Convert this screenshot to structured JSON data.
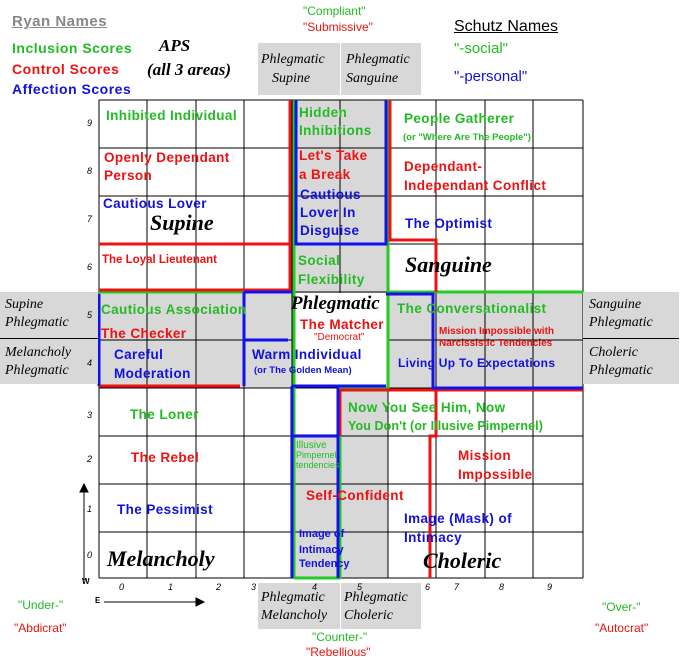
{
  "legend": {
    "ryan_names": "Ryan  Names",
    "inclusion": "Inclusion Scores",
    "control": "Control Scores",
    "affection": "Affection Scores",
    "aps_line1": "APS",
    "aps_line2": "(all 3 areas)",
    "schutz_names": "Schutz Names",
    "social": "\"-social\"",
    "personal": "\"-personal\""
  },
  "top_labels": {
    "compliant": "\"Compliant\"",
    "submissive": "\"Submissive\""
  },
  "bottom_labels": {
    "counter": "\"Counter-\"",
    "rebellious": "\"Rebellious\""
  },
  "left_labels": {
    "under": "\"Under-\"",
    "abdicrat": "\"Abdicrat\""
  },
  "right_labels": {
    "over": "\"Over-\"",
    "autocrat": "\"Autocrat\""
  },
  "side_boxes": {
    "top_left": "Phlegmatic\nSupine",
    "top_right": "Phlegmatic\nSanguine",
    "bottom_left": "Phlegmatic\nMelancholy",
    "bottom_right": "Phlegmatic\nCholeric",
    "left_top": "Supine\nPhlegmatic",
    "left_bottom": "Melancholy\nPhlegmatic",
    "right_top": "Sanguine\nPhlegmatic",
    "right_bottom": "Choleric\nPhlegmatic"
  },
  "temperaments": {
    "supine": "Supine",
    "sanguine": "Sanguine",
    "phlegmatic": "Phlegmatic",
    "melancholy": "Melancholy",
    "choleric": "Choleric"
  },
  "cells": {
    "inhibited_individual": "Inhibited Individual",
    "hidden_inhibitions_1": "Hidden",
    "hidden_inhibitions_2": "Inhibitions",
    "people_gatherer": "People Gatherer",
    "where_are_the_people": "(or \"Where Are The People\")",
    "openly_dependant_1": "Openly Dependant",
    "openly_dependant_2": "Person",
    "lets_take_break_1": "Let's Take",
    "lets_take_break_2": "a Break",
    "dependant_independant_1": "Dependant-",
    "dependant_independant_2": "Independant Conflict",
    "cautious_lover": "Cautious Lover",
    "cautious_lover_disguise_1": "Cautious",
    "cautious_lover_disguise_2": "Lover In",
    "cautious_lover_disguise_3": "Disguise",
    "the_optimist": "The Optimist",
    "loyal_lieutenant": "The Loyal Lieutenant",
    "social_flexibility_1": "Social",
    "social_flexibility_2": "Flexibility",
    "cautious_association": "Cautious Association",
    "the_matcher": "The Matcher",
    "democrat": "\"Democrat\"",
    "the_conversationalist": "The Conversationalist",
    "the_checker": "The Checker",
    "mission_impossible_narc_1": "Mission Impossible with",
    "mission_impossible_narc_2": "Narcissistic Tendencies",
    "careful_moderation_1": "Careful",
    "careful_moderation_2": "Moderation",
    "warm_individual": "Warm Individual",
    "golden_mean": "(or The Golden Mean)",
    "living_up": "Living Up To Expectations",
    "the_loner": "The Loner",
    "now_you_see_1": "Now You See Him, Now",
    "now_you_see_2": "You Don't (or Illusive Pimpernel)",
    "the_rebel": "The Rebel",
    "illusive_1": "Illusive",
    "illusive_2": "Pimpernel",
    "illusive_3": "tendencies",
    "mission_impossible_1": "Mission",
    "mission_impossible_2": "Impossible",
    "self_confident": "Self-Confident",
    "the_pessimist": "The Pessimist",
    "image_mask_1": "Image (Mask) of",
    "image_mask_2": "Intimacy",
    "image_intimacy_1": "Image of",
    "image_intimacy_2": "Intimacy",
    "image_intimacy_3": "Tendency"
  },
  "axis": {
    "y_ticks": [
      "9",
      "8",
      "7",
      "6",
      "5",
      "4",
      "3",
      "2",
      "1",
      "0"
    ],
    "x_ticks": [
      "0",
      "1",
      "2",
      "3",
      "4",
      "5",
      "6",
      "7",
      "8",
      "9"
    ],
    "w_label": "W",
    "e_label": "E"
  },
  "colors": {
    "inclusion": "#22bb22",
    "control": "#ee1111",
    "affection": "#1111dd",
    "shade": "#d8d8d8"
  }
}
